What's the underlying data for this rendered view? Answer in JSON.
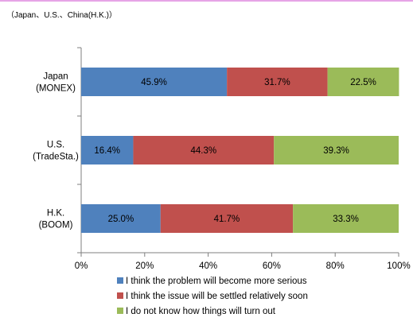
{
  "subtitle": "（Japan、U.S.、China(H.K.)）",
  "colors": {
    "series": [
      "#4f81bd",
      "#c0504d",
      "#9bbb59"
    ],
    "axis": "#7f7f7f",
    "top_rule": "#e6a4e6"
  },
  "chart_data": {
    "type": "bar",
    "orientation": "horizontal",
    "stacked": "percent",
    "title": "",
    "xlabel": "",
    "ylabel": "",
    "categories": [
      [
        "Japan",
        "(MONEX)"
      ],
      [
        "U.S.",
        "(TradeSta.)"
      ],
      [
        "H.K.",
        "(BOOM)"
      ]
    ],
    "series": [
      {
        "name": "I think the problem will become more serious",
        "values": [
          45.9,
          16.4,
          25.0
        ],
        "labels": [
          "45.9%",
          "16.4%",
          "25.0%"
        ]
      },
      {
        "name": "I think the issue will be settled relatively soon",
        "values": [
          31.7,
          44.3,
          41.7
        ],
        "labels": [
          "31.7%",
          "44.3%",
          "41.7%"
        ]
      },
      {
        "name": "I do not know how things will turn out",
        "values": [
          22.5,
          39.3,
          33.3
        ],
        "labels": [
          "22.5%",
          "39.3%",
          "33.3%"
        ]
      }
    ],
    "xlim": [
      0,
      100
    ],
    "x_ticks": [
      "0%",
      "20%",
      "40%",
      "60%",
      "80%",
      "100%"
    ],
    "grid": false,
    "legend_position": "bottom"
  }
}
